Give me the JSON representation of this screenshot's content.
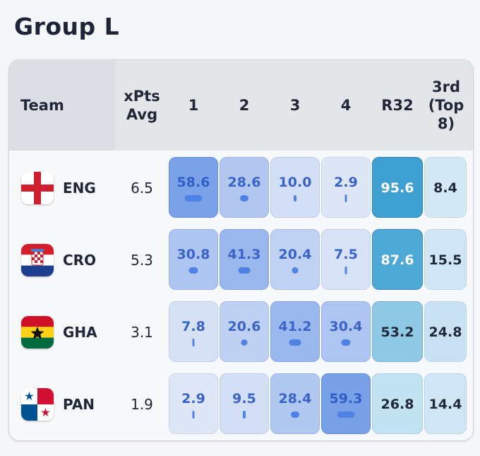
{
  "title": "Group L",
  "columns": {
    "team": "Team",
    "xpts_line1": "xPts",
    "xpts_line2": "Avg",
    "pos1": "1",
    "pos2": "2",
    "pos3": "3",
    "pos4": "4",
    "r32": "R32",
    "third_line1": "3rd",
    "third_line2": "(Top",
    "third_line3": "8)"
  },
  "teams": [
    {
      "code": "ENG",
      "flag": "england-flag",
      "xpts": "6.5",
      "p1": "58.6",
      "p2": "28.6",
      "p3": "10.0",
      "p4": "2.9",
      "r32": "95.6",
      "third": "8.4"
    },
    {
      "code": "CRO",
      "flag": "croatia-flag",
      "xpts": "5.3",
      "p1": "30.8",
      "p2": "41.3",
      "p3": "20.4",
      "p4": "7.5",
      "r32": "87.6",
      "third": "15.5"
    },
    {
      "code": "GHA",
      "flag": "ghana-flag",
      "xpts": "3.1",
      "p1": "7.8",
      "p2": "20.6",
      "p3": "41.2",
      "p4": "30.4",
      "r32": "53.2",
      "third": "24.8"
    },
    {
      "code": "PAN",
      "flag": "panama-flag",
      "xpts": "1.9",
      "p1": "2.9",
      "p2": "9.5",
      "p3": "28.4",
      "p4": "59.3",
      "r32": "26.8",
      "third": "14.4"
    }
  ],
  "chart_data": {
    "type": "table",
    "title": "Group L",
    "columns": [
      "Team",
      "xPts Avg",
      "1",
      "2",
      "3",
      "4",
      "R32",
      "3rd (Top 8)"
    ],
    "rows": [
      {
        "team": "ENG",
        "xpts_avg": 6.5,
        "pos1": 58.6,
        "pos2": 28.6,
        "pos3": 10.0,
        "pos4": 2.9,
        "r32": 95.6,
        "third_top8": 8.4
      },
      {
        "team": "CRO",
        "xpts_avg": 5.3,
        "pos1": 30.8,
        "pos2": 41.3,
        "pos3": 20.4,
        "pos4": 7.5,
        "r32": 87.6,
        "third_top8": 15.5
      },
      {
        "team": "GHA",
        "xpts_avg": 3.1,
        "pos1": 7.8,
        "pos2": 20.6,
        "pos3": 41.2,
        "pos4": 30.4,
        "r32": 53.2,
        "third_top8": 24.8
      },
      {
        "team": "PAN",
        "xpts_avg": 1.9,
        "pos1": 2.9,
        "pos2": 9.5,
        "pos3": 28.4,
        "pos4": 59.3,
        "r32": 26.8,
        "third_top8": 14.4
      }
    ]
  }
}
